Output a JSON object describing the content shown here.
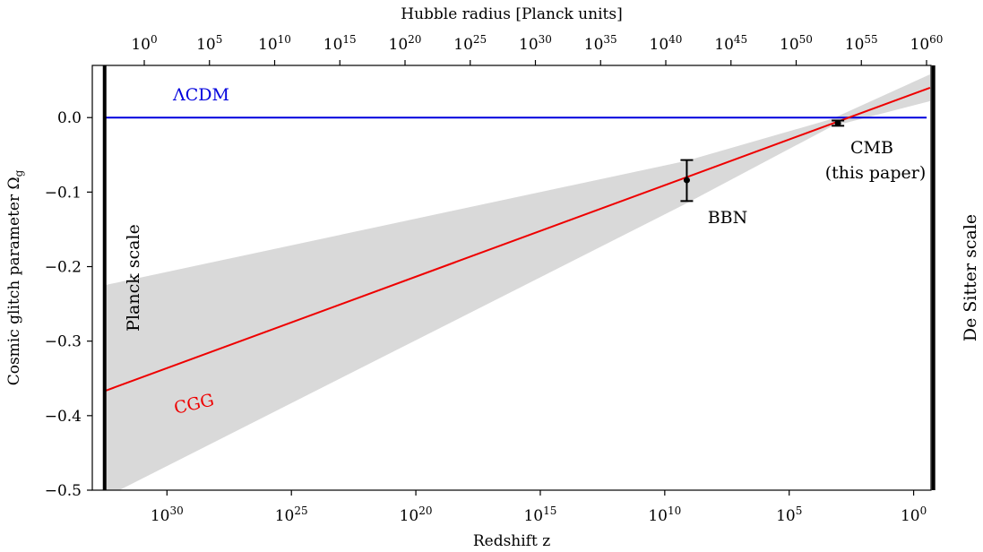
{
  "chart_data": {
    "type": "line",
    "xlabel": "Redshift z",
    "x2label": "Hubble radius [Planck units]",
    "ylabel": "Cosmic glitch parameter Ω",
    "ylabel_sub": "g",
    "xscale": "log",
    "x_reversed": true,
    "xlim": [
      1e+33,
      0.2
    ],
    "ylim": [
      -0.5,
      0.07
    ],
    "xticks": [
      {
        "value": 1e+30,
        "base": "10",
        "exp": "30"
      },
      {
        "value": 1e+25,
        "base": "10",
        "exp": "25"
      },
      {
        "value": 1e+20,
        "base": "10",
        "exp": "20"
      },
      {
        "value": 1000000000000000.0,
        "base": "10",
        "exp": "15"
      },
      {
        "value": 10000000000.0,
        "base": "10",
        "exp": "10"
      },
      {
        "value": 100000.0,
        "base": "10",
        "exp": "5"
      },
      {
        "value": 1,
        "base": "10",
        "exp": "0"
      }
    ],
    "x2ticks": [
      {
        "value": 1,
        "base": "10",
        "exp": "0"
      },
      {
        "value": 100000.0,
        "base": "10",
        "exp": "5"
      },
      {
        "value": 10000000000.0,
        "base": "10",
        "exp": "10"
      },
      {
        "value": 1000000000000000.0,
        "base": "10",
        "exp": "15"
      },
      {
        "value": 1e+20,
        "base": "10",
        "exp": "20"
      },
      {
        "value": 1e+25,
        "base": "10",
        "exp": "25"
      },
      {
        "value": 1e+30,
        "base": "10",
        "exp": "30"
      },
      {
        "value": 1e+35,
        "base": "10",
        "exp": "35"
      },
      {
        "value": 1e+40,
        "base": "10",
        "exp": "40"
      },
      {
        "value": 1e+45,
        "base": "10",
        "exp": "45"
      },
      {
        "value": 1e+50,
        "base": "10",
        "exp": "50"
      },
      {
        "value": 1e+55,
        "base": "10",
        "exp": "55"
      },
      {
        "value": 1e+60,
        "base": "10",
        "exp": "60"
      }
    ],
    "yticks": [
      {
        "value": 0.0,
        "label": "0.0"
      },
      {
        "value": -0.1,
        "label": "−0.1"
      },
      {
        "value": -0.2,
        "label": "−0.2"
      },
      {
        "value": -0.3,
        "label": "−0.3"
      },
      {
        "value": -0.4,
        "label": "−0.4"
      },
      {
        "value": -0.5,
        "label": "−0.5"
      }
    ],
    "series": [
      {
        "name": "ΛCDM",
        "color": "#0000dd",
        "points": [
          {
            "z": 3.2e+32,
            "y": 0.0
          },
          {
            "z": 0.3,
            "y": 0.0
          }
        ]
      },
      {
        "name": "CGG",
        "color": "#ee0000",
        "points": [
          {
            "z": 3.2e+32,
            "y": -0.367
          },
          {
            "z": 0.22,
            "y": 0.04
          }
        ]
      }
    ],
    "band": {
      "color": "#d9d9d9",
      "upper": [
        {
          "z": 3.2e+32,
          "y": -0.225
        },
        {
          "z": 1300000000.0,
          "y": -0.058
        },
        {
          "z": 2000,
          "y": -0.002
        },
        {
          "z": 0.22,
          "y": 0.058
        }
      ],
      "lower": [
        {
          "z": 3.2e+32,
          "y": -0.51
        },
        {
          "z": 1300000000.0,
          "y": -0.115
        },
        {
          "z": 2000,
          "y": -0.012
        },
        {
          "z": 0.22,
          "y": 0.022
        }
      ]
    },
    "errorbars": [
      {
        "label": "BBN",
        "z": 1300000000.0,
        "y": -0.084,
        "lo": -0.112,
        "hi": -0.057
      },
      {
        "label_line1": "CMB",
        "label_line2": "(this paper)",
        "z": 1100,
        "y": -0.0075,
        "lo": -0.011,
        "hi": -0.004
      }
    ],
    "vlines": [
      {
        "label": "Planck scale",
        "z": 3.2e+32
      },
      {
        "label": "De Sitter scale",
        "z": 0.16
      }
    ]
  }
}
